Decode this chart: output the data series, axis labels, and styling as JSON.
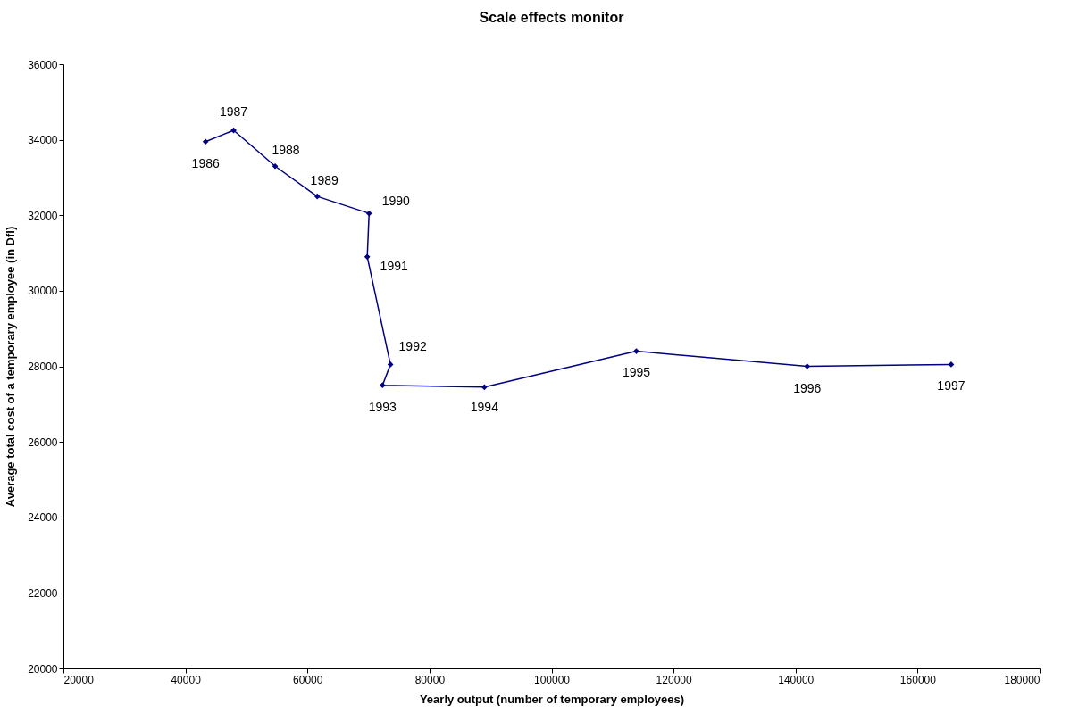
{
  "chart_data": {
    "type": "line",
    "title": "Scale effects monitor",
    "xlabel": "Yearly output (number of temporary employees)",
    "ylabel": "Average total cost of a temporary employee (in Dfl)",
    "x": [
      43300,
      47900,
      54700,
      61600,
      70100,
      69800,
      73600,
      72300,
      89000,
      113900,
      141900,
      165500
    ],
    "series": [
      {
        "color": "#000080",
        "values": [
          33950,
          34250,
          33300,
          32500,
          32050,
          30900,
          28050,
          27500,
          27450,
          28400,
          28000,
          28050
        ]
      }
    ],
    "annotations": [
      {
        "text": "1986",
        "x": 43300,
        "y": 33950
      },
      {
        "text": "1987",
        "x": 47900,
        "y": 34250
      },
      {
        "text": "1988",
        "x": 54700,
        "y": 33300
      },
      {
        "text": "1989",
        "x": 61600,
        "y": 32500
      },
      {
        "text": "1990",
        "x": 70100,
        "y": 32050
      },
      {
        "text": "1991",
        "x": 69800,
        "y": 30900
      },
      {
        "text": "1992",
        "x": 73600,
        "y": 28050
      },
      {
        "text": "1993",
        "x": 72300,
        "y": 27500
      },
      {
        "text": "1994",
        "x": 89000,
        "y": 27450
      },
      {
        "text": "1995",
        "x": 113900,
        "y": 28400
      },
      {
        "text": "1996",
        "x": 141900,
        "y": 28000
      },
      {
        "text": "1997",
        "x": 165500,
        "y": 28050
      }
    ],
    "xlim": [
      20000,
      180000
    ],
    "xticks": [
      20000,
      40000,
      60000,
      80000,
      100000,
      120000,
      140000,
      160000,
      180000
    ],
    "ylim": [
      20000,
      36000
    ],
    "yticks": [
      20000,
      22000,
      24000,
      26000,
      28000,
      30000,
      32000,
      34000,
      36000
    ],
    "grid": false,
    "marker": "diamond",
    "line_style": "solid"
  }
}
